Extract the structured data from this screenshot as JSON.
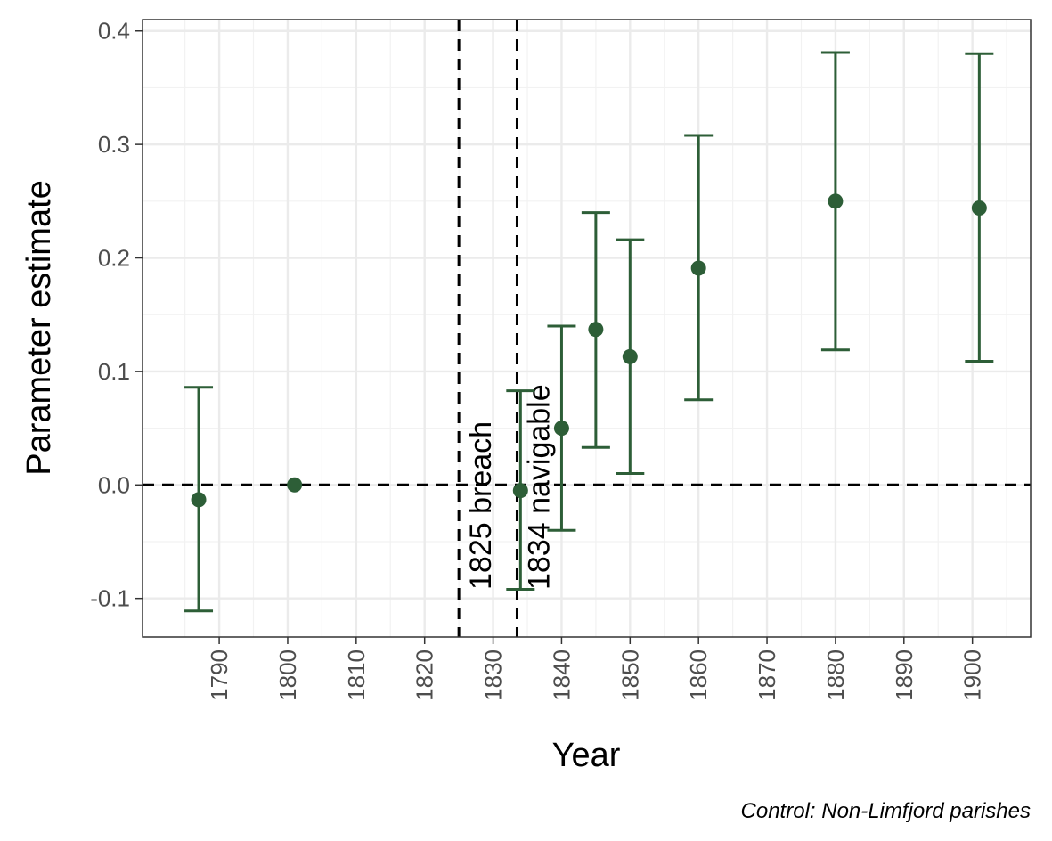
{
  "chart_data": {
    "type": "scatter",
    "xlabel": "Year",
    "ylabel": "Parameter estimate",
    "caption": "Control: Non-Limfjord parishes",
    "xlim": [
      1778.8,
      1908.5
    ],
    "ylim": [
      -0.134,
      0.41
    ],
    "x_ticks": [
      1790,
      1800,
      1810,
      1820,
      1830,
      1840,
      1850,
      1860,
      1870,
      1880,
      1890,
      1900
    ],
    "x_tick_labels": [
      "1790",
      "1800",
      "1810",
      "1820",
      "1830",
      "1840",
      "1850",
      "1860",
      "1870",
      "1880",
      "1890",
      "1900"
    ],
    "y_ticks": [
      -0.1,
      0.0,
      0.1,
      0.2,
      0.3,
      0.4
    ],
    "y_tick_labels": [
      "-0.1",
      "0.0",
      "0.1",
      "0.2",
      "0.3",
      "0.4"
    ],
    "grid": true,
    "reference_hline": 0.0,
    "vlines": [
      {
        "x": 1825,
        "label": "1825 breach"
      },
      {
        "x": 1833.5,
        "label": "1834 navigable"
      }
    ],
    "color": "#2d5e37",
    "points": [
      {
        "x": 1787,
        "y": -0.013,
        "lo": -0.111,
        "hi": 0.086
      },
      {
        "x": 1801,
        "y": 0.0,
        "lo": null,
        "hi": null
      },
      {
        "x": 1834,
        "y": -0.005,
        "lo": -0.092,
        "hi": 0.083
      },
      {
        "x": 1840,
        "y": 0.05,
        "lo": -0.04,
        "hi": 0.14
      },
      {
        "x": 1845,
        "y": 0.137,
        "lo": 0.033,
        "hi": 0.24
      },
      {
        "x": 1850,
        "y": 0.113,
        "lo": 0.01,
        "hi": 0.216
      },
      {
        "x": 1860,
        "y": 0.191,
        "lo": 0.075,
        "hi": 0.308
      },
      {
        "x": 1880,
        "y": 0.25,
        "lo": 0.119,
        "hi": 0.381
      },
      {
        "x": 1901,
        "y": 0.244,
        "lo": 0.109,
        "hi": 0.38
      }
    ]
  }
}
